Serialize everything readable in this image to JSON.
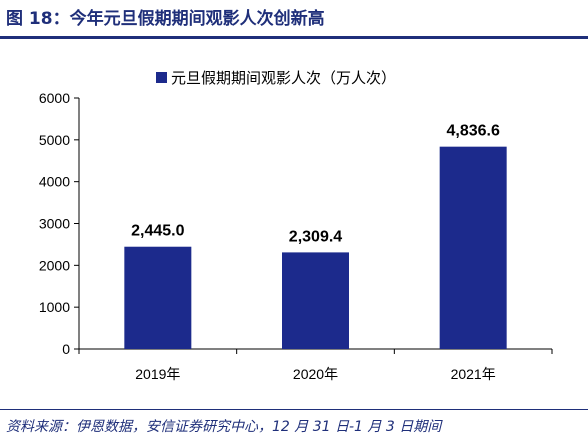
{
  "figure": {
    "title": "图 18：今年元旦假期期间观影人次创新高",
    "source": "资料来源：伊恩数据，安信证券研究中心，12 月 31 日-1 月 3 日期间"
  },
  "colors": {
    "bar": "#1c2a8c",
    "axis": "#000000",
    "accent": "#1f2f7a"
  },
  "chart_data": {
    "type": "bar",
    "categories": [
      "2019年",
      "2020年",
      "2021年"
    ],
    "series": [
      {
        "name": "元旦假期期间观影人次（万人次）",
        "values": [
          2445.0,
          2309.4,
          4836.6
        ],
        "data_labels": [
          "2,445.0",
          "2,309.4",
          "4,836.6"
        ]
      }
    ],
    "title": "",
    "xlabel": "",
    "ylabel": "",
    "ylim": [
      0,
      6000
    ],
    "yticks": [
      "0",
      "1000",
      "2000",
      "3000",
      "4000",
      "5000",
      "6000"
    ],
    "ytick_values": [
      0,
      1000,
      2000,
      3000,
      4000,
      5000,
      6000
    ],
    "grid": false,
    "legend": "top-center"
  }
}
